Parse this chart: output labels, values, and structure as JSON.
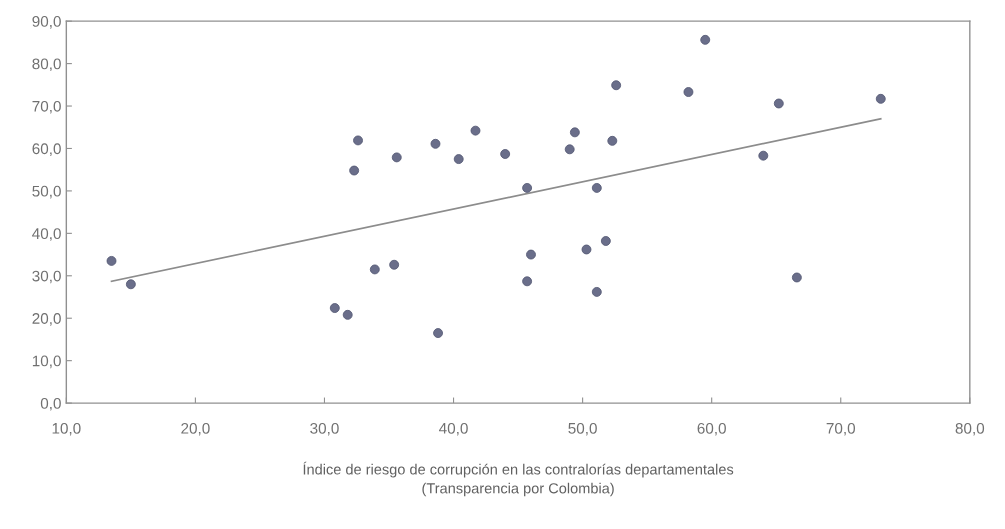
{
  "chart_data": {
    "type": "scatter",
    "xlabel": "Índice de riesgo de corrupción en las contralorías departamentales\n(Transparencia por Colombia)",
    "grid": false,
    "legend": false,
    "xlim": [
      10,
      80
    ],
    "ylim": [
      0,
      90
    ],
    "xticks": [
      {
        "value": 10,
        "label": "10,0"
      },
      {
        "value": 20,
        "label": "20,0"
      },
      {
        "value": 30,
        "label": "30,0"
      },
      {
        "value": 40,
        "label": "40,0"
      },
      {
        "value": 50,
        "label": "50,0"
      },
      {
        "value": 60,
        "label": "60,0"
      },
      {
        "value": 70,
        "label": "70,0"
      },
      {
        "value": 80,
        "label": "80,0"
      }
    ],
    "yticks": [
      {
        "value": 0,
        "label": "0,0"
      },
      {
        "value": 10,
        "label": "10,0"
      },
      {
        "value": 20,
        "label": "20,0"
      },
      {
        "value": 30,
        "label": "30,0"
      },
      {
        "value": 40,
        "label": "40,0"
      },
      {
        "value": 50,
        "label": "50,0"
      },
      {
        "value": 60,
        "label": "60,0"
      },
      {
        "value": 70,
        "label": "70,0"
      },
      {
        "value": 80,
        "label": "80,0"
      },
      {
        "value": 90,
        "label": "90,0"
      }
    ],
    "series": [
      {
        "marker": "circle",
        "color": "#6a6e8a",
        "x": [
          13.5,
          15.0,
          30.8,
          31.8,
          32.3,
          32.6,
          33.9,
          35.4,
          35.6,
          38.6,
          38.8,
          40.4,
          41.7,
          44.0,
          45.7,
          46.0,
          45.7,
          49.0,
          49.4,
          50.3,
          51.1,
          51.1,
          51.8,
          52.3,
          52.6,
          58.2,
          59.5,
          64.0,
          65.2,
          66.6,
          73.1
        ],
        "values": [
          33.5,
          28.0,
          22.4,
          20.8,
          54.8,
          61.9,
          31.5,
          32.6,
          57.9,
          61.1,
          16.5,
          57.5,
          64.2,
          58.7,
          50.7,
          35.0,
          28.7,
          59.8,
          63.8,
          36.2,
          50.7,
          26.2,
          38.2,
          61.8,
          74.9,
          73.3,
          85.6,
          58.3,
          70.6,
          29.6,
          71.7
        ]
      },
      {
        "type": "line",
        "color": "#8c8c8c",
        "x": [
          13.5,
          73.1
        ],
        "values": [
          28.7,
          67.0
        ]
      }
    ]
  }
}
